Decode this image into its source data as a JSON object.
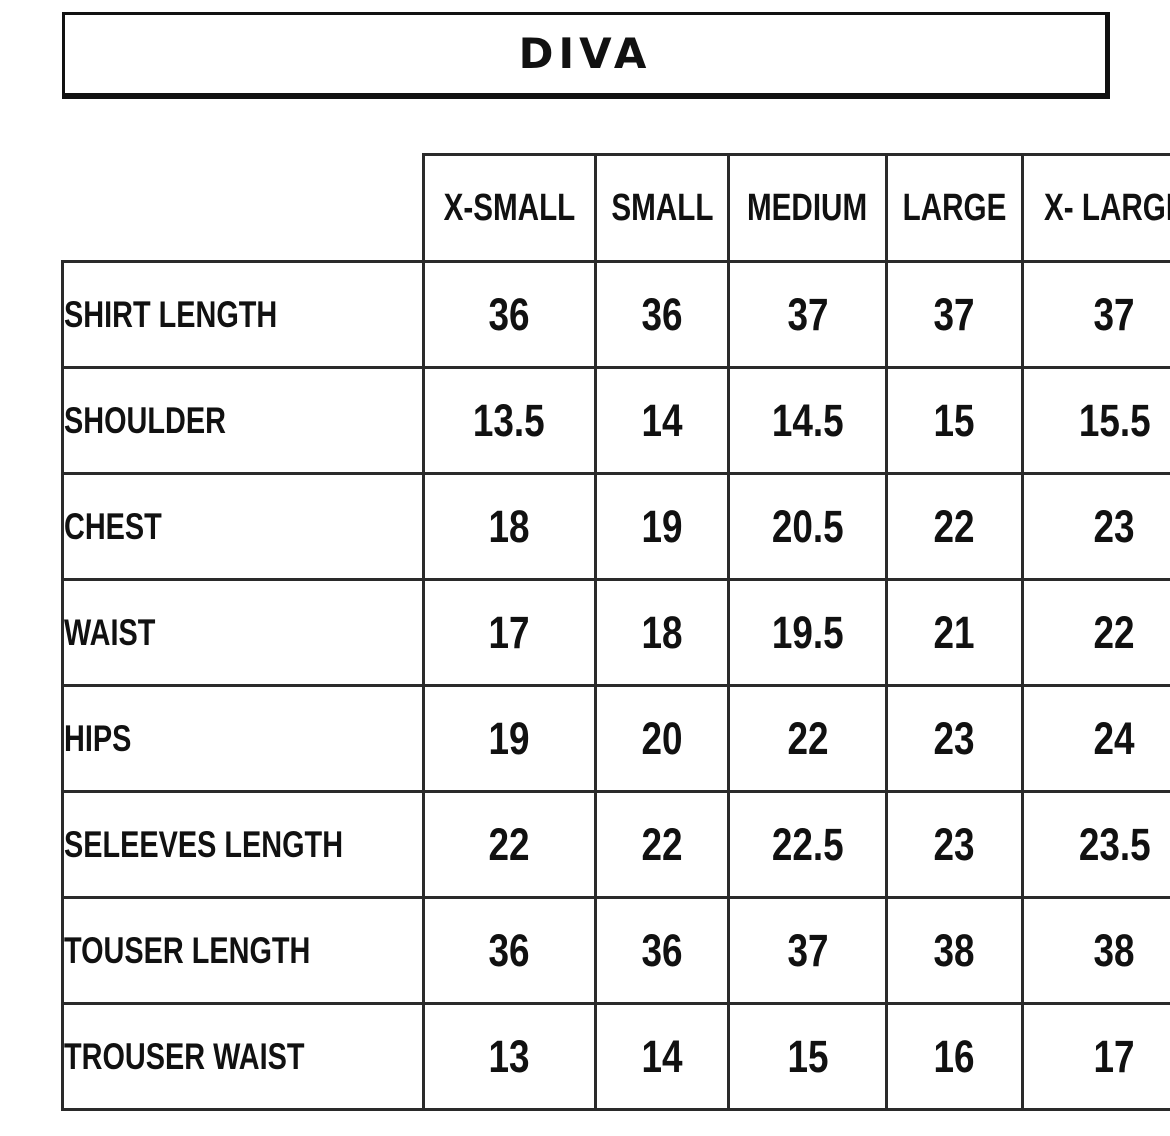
{
  "title": "DIVA",
  "columns": [
    "X-SMALL",
    "SMALL",
    "MEDIUM",
    "LARGE",
    "X- LARGE"
  ],
  "rows": [
    {
      "label": "SHIRT LENGTH",
      "values": [
        "36",
        "36",
        "37",
        "37",
        "37"
      ]
    },
    {
      "label": "SHOULDER",
      "values": [
        "13.5",
        "14",
        "14.5",
        "15",
        "15.5"
      ]
    },
    {
      "label": "CHEST",
      "values": [
        "18",
        "19",
        "20.5",
        "22",
        "23"
      ]
    },
    {
      "label": "WAIST",
      "values": [
        "17",
        "18",
        "19.5",
        "21",
        "22"
      ]
    },
    {
      "label": "HIPS",
      "values": [
        "19",
        "20",
        "22",
        "23",
        "24"
      ]
    },
    {
      "label": "SELEEVES LENGTH",
      "values": [
        "22",
        "22",
        "22.5",
        "23",
        "23.5"
      ]
    },
    {
      "label": "TOUSER LENGTH",
      "values": [
        "36",
        "36",
        "37",
        "38",
        "38"
      ]
    },
    {
      "label": "TROUSER WAIST",
      "values": [
        "13",
        "14",
        "15",
        "16",
        "17"
      ]
    }
  ]
}
